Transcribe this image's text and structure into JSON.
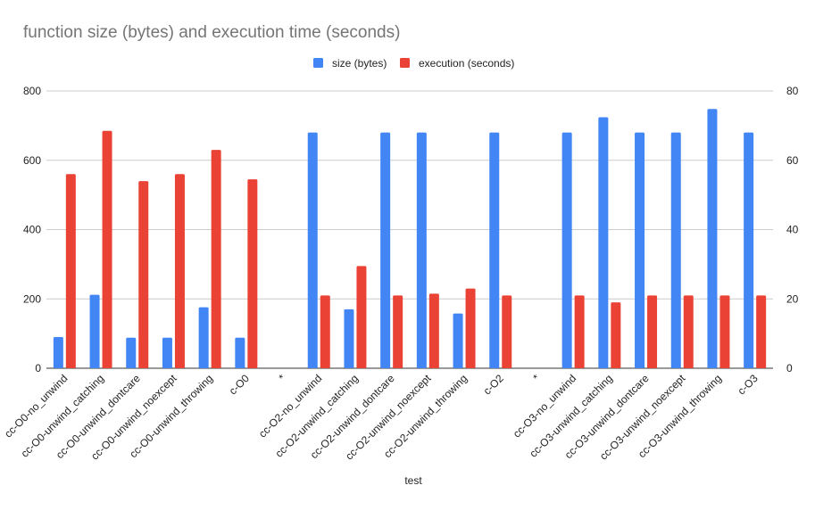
{
  "chart_data": {
    "type": "bar",
    "title": "function size (bytes) and execution time (seconds)",
    "xlabel": "test",
    "ylabel_left": "",
    "ylabel_right": "",
    "ylim_left": [
      0,
      800
    ],
    "ylim_right": [
      0,
      80
    ],
    "yticks_left": [
      0,
      200,
      400,
      600,
      800
    ],
    "yticks_right": [
      0,
      20,
      40,
      60,
      80
    ],
    "grid": true,
    "legend_position": "top-center",
    "categories": [
      "cc-O0-no_unwind",
      "cc-O0-unwind_catching",
      "cc-O0-unwind_dontcare",
      "cc-O0-unwind_noexcept",
      "cc-O0-unwind_throwing",
      "c-O0",
      "*",
      "cc-O2-no_unwind",
      "cc-O2-unwind_catching",
      "cc-O2-unwind_dontcare",
      "cc-O2-unwind_noexcept",
      "cc-O2-unwind_throwing",
      "c-O2",
      "*",
      "cc-O3-no_unwind",
      "cc-O3-unwind_catching",
      "cc-O3-unwind_dontcare",
      "cc-O3-unwind_noexcept",
      "cc-O3-unwind_throwing",
      "c-O3"
    ],
    "series": [
      {
        "name": "size (bytes)",
        "axis": "left",
        "color": "#4285f4",
        "values": [
          90,
          212,
          88,
          88,
          176,
          88,
          null,
          680,
          170,
          680,
          680,
          158,
          680,
          null,
          680,
          724,
          680,
          680,
          748,
          680
        ]
      },
      {
        "name": "execution (seconds)",
        "axis": "right",
        "color": "#ea4335",
        "values": [
          56,
          68.5,
          54,
          56,
          63,
          54.5,
          null,
          21,
          29.5,
          21,
          21.5,
          23,
          21,
          null,
          21,
          19,
          21,
          21,
          21,
          21
        ]
      }
    ]
  },
  "colors": {
    "title": "#757575",
    "axis_text": "#222222",
    "grid": "#cccccc",
    "baseline": "#333333"
  }
}
